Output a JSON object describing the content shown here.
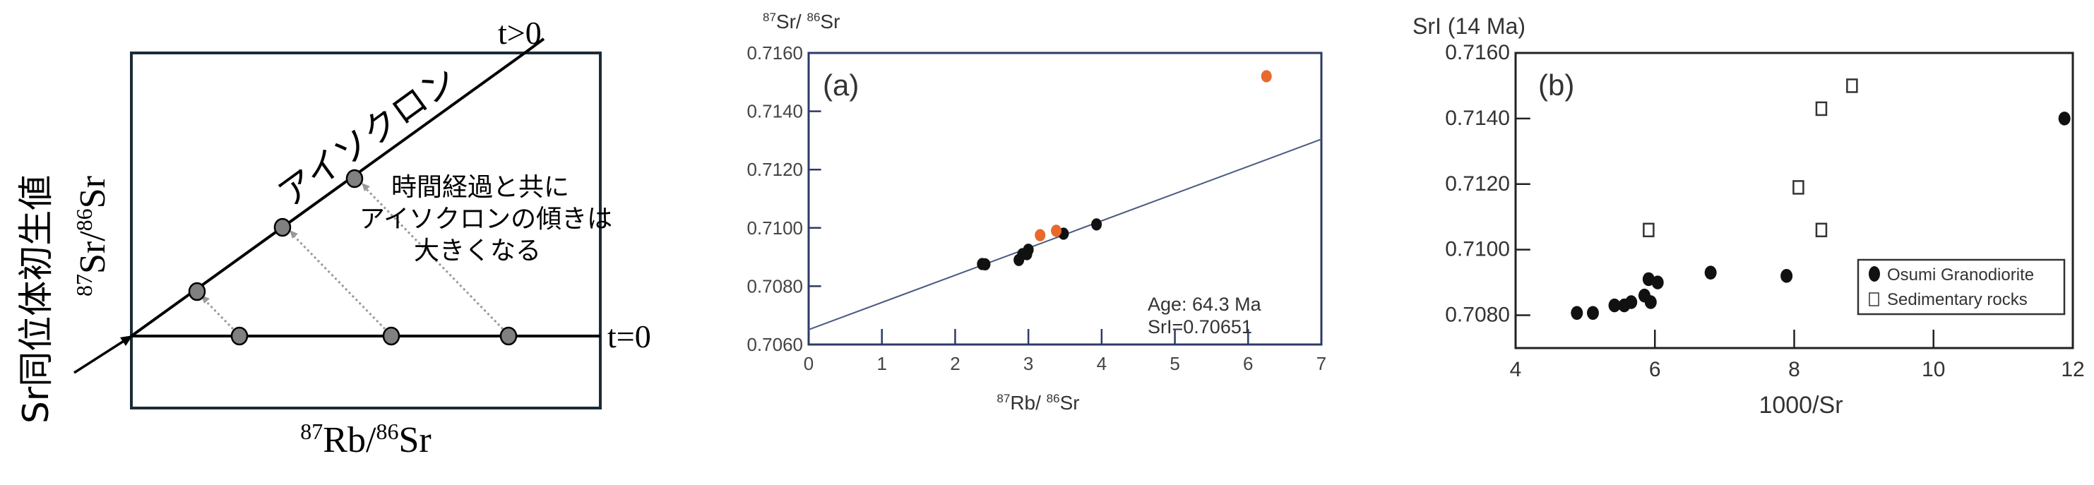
{
  "diagram": {
    "y_title": "Sr同位体初生値",
    "y_label": {
      "sup1": "87",
      "base1": "Sr/",
      "sup2": "86",
      "base2": "Sr"
    },
    "x_label": {
      "sup1": "87",
      "base1": "Rb/",
      "sup2": "86",
      "base2": "Sr"
    },
    "t0_label": "t=0",
    "t_label": "t>0",
    "isochron_label": "アイソクロン",
    "annotation": [
      "時間経過と共に",
      "アイソクロンの傾きは",
      "大きくなる"
    ],
    "colors": {
      "point": "#808080",
      "line": "#000000",
      "box": "#1c2b36"
    }
  },
  "chart_data": [
    {
      "type": "scatter",
      "panel_label": "(a)",
      "ylabel": {
        "sup1": "87",
        "base1": "Sr/ ",
        "sup2": "86",
        "base2": "Sr"
      },
      "xlabel": {
        "sup1": "87",
        "base1": "Rb/ ",
        "sup2": "86",
        "base2": "Sr"
      },
      "xlim": [
        0,
        7
      ],
      "ylim": [
        0.706,
        0.716
      ],
      "xticks": [
        "0",
        "1",
        "2",
        "3",
        "4",
        "5",
        "6",
        "7"
      ],
      "yticks": [
        "0.7060",
        "0.7080",
        "0.7100",
        "0.7120",
        "0.7140",
        "0.7160"
      ],
      "annotation": [
        "Age: 64.3 Ma",
        "SrI=0.70651"
      ],
      "isochron": {
        "intercept": 0.70651,
        "slope": 0.000933
      },
      "series": [
        {
          "name": "black",
          "color": "#111111",
          "points": [
            [
              2.37,
              0.70876
            ],
            [
              2.41,
              0.70875
            ],
            [
              2.87,
              0.7089
            ],
            [
              2.92,
              0.7091
            ],
            [
              2.98,
              0.7091
            ],
            [
              3.0,
              0.70925
            ],
            [
              3.48,
              0.7098
            ],
            [
              3.93,
              0.71012
            ]
          ]
        },
        {
          "name": "orange",
          "color": "#e8692a",
          "points": [
            [
              3.16,
              0.70975
            ],
            [
              3.38,
              0.7099
            ],
            [
              6.25,
              0.7152
            ]
          ]
        }
      ]
    },
    {
      "type": "scatter",
      "panel_label": "(b)",
      "ylabel": "SrI (14 Ma)",
      "xlabel": "1000/Sr",
      "xlim": [
        4,
        12
      ],
      "ylim": [
        0.707,
        0.716
      ],
      "xticks": [
        "4",
        "6",
        "8",
        "10",
        "12"
      ],
      "yticks": [
        "0.7080",
        "0.7100",
        "0.7120",
        "0.7140",
        "0.7160"
      ],
      "legend": {
        "position": "bottom-right",
        "entries": [
          "Osumi Granodiorite",
          "Sedimentary rocks"
        ]
      },
      "series": [
        {
          "name": "Osumi Granodiorite",
          "marker": "filled-circle",
          "color": "#111111",
          "points": [
            [
              4.88,
              0.70807
            ],
            [
              5.11,
              0.70807
            ],
            [
              5.42,
              0.7083
            ],
            [
              5.56,
              0.7083
            ],
            [
              5.66,
              0.7084
            ],
            [
              5.85,
              0.7086
            ],
            [
              5.94,
              0.7084
            ],
            [
              5.91,
              0.7091
            ],
            [
              6.04,
              0.709
            ],
            [
              6.8,
              0.7093
            ],
            [
              7.89,
              0.7092
            ],
            [
              11.88,
              0.714
            ]
          ]
        },
        {
          "name": "Sedimentary rocks",
          "marker": "open-square",
          "color": "#333333",
          "points": [
            [
              5.91,
              0.7106
            ],
            [
              8.06,
              0.7119
            ],
            [
              8.39,
              0.7143
            ],
            [
              8.83,
              0.715
            ],
            [
              8.39,
              0.7106
            ]
          ]
        }
      ]
    }
  ]
}
